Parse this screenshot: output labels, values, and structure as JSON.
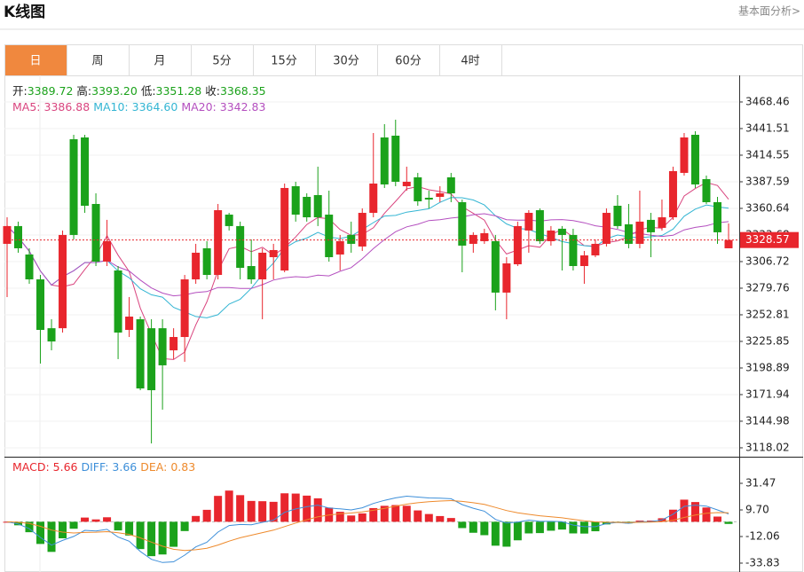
{
  "header": {
    "title": "K线图",
    "link": "基本面分析>"
  },
  "tabs": [
    "日",
    "周",
    "月",
    "5分",
    "15分",
    "30分",
    "60分",
    "4时"
  ],
  "active_tab": 0,
  "chart_data": {
    "type": "candlestick",
    "up_color": "#e8262d",
    "down_color": "#1ba21b",
    "quote": [
      {
        "name": "开:",
        "value": 3389.72
      },
      {
        "name": "高:",
        "value": 3393.2,
        "value_label": "3393.20"
      },
      {
        "name": "低:",
        "value": 3351.28
      },
      {
        "name": "收:",
        "value": 3368.35
      }
    ],
    "quote_color": "#1ba21b",
    "moving_averages": [
      {
        "name": "MA5:",
        "value": 3386.88,
        "period": 5,
        "color": "#d9457f"
      },
      {
        "name": "MA10:",
        "value": 3364.6,
        "value_label": "3364.60",
        "period": 10,
        "color": "#33b5d3"
      },
      {
        "name": "MA20:",
        "value": 3342.83,
        "period": 20,
        "color": "#b44fbf"
      }
    ],
    "open": [
      3324.7,
      3342.7,
      3313.9,
      3288.7,
      3239.2,
      3239.2,
      3430.7,
      3432.5,
      3365.1,
      3306.7,
      3297.7,
      3237.5,
      3248.3,
      3239.2,
      3239.2,
      3216.8,
      3230.3,
      3288.7,
      3320.2,
      3293.2,
      3354.3,
      3342.7,
      3302.2,
      3288.7,
      3311.2,
      3297.7,
      3383.1,
      3372.3,
      3374.1,
      3354.3,
      3313.9,
      3333.7,
      3322.0,
      3356.1,
      3432.5,
      3434.3,
      3383.1,
      3392.1,
      3371.4,
      3372.3,
      3392.1,
      3366.9,
      3324.7,
      3327.4,
      3327.4,
      3275.3,
      3304.0,
      3338.2,
      3358.8,
      3327.4,
      3340.0,
      3333.7,
      3302.2,
      3313.0,
      3324.7,
      3363.3,
      3344.5,
      3324.7,
      3349.0,
      3340.9,
      3351.6,
      3396.6,
      3435.2,
      3390.3,
      3366.9,
      3320.2
    ],
    "high": [
      3351.6,
      3347.2,
      3320.2,
      3293.2,
      3248.3,
      3338.2,
      3435.2,
      3435.2,
      3375.9,
      3349.0,
      3302.2,
      3270.8,
      3251.0,
      3248.3,
      3248.3,
      3239.2,
      3293.2,
      3324.7,
      3327.4,
      3365.1,
      3356.1,
      3347.2,
      3329.2,
      3320.2,
      3324.7,
      3385.8,
      3387.6,
      3375.9,
      3402.9,
      3378.6,
      3333.7,
      3347.2,
      3360.6,
      3437.0,
      3446.0,
      3450.5,
      3402.9,
      3396.6,
      3378.6,
      3383.1,
      3396.6,
      3369.6,
      3336.4,
      3340.0,
      3333.7,
      3311.2,
      3347.2,
      3358.8,
      3360.6,
      3342.7,
      3342.7,
      3340.0,
      3317.5,
      3329.2,
      3360.6,
      3374.1,
      3365.1,
      3378.6,
      3356.1,
      3369.6,
      3402.9,
      3437.0,
      3438.8,
      3393.9,
      3372.3,
      3345.4
    ],
    "low": [
      3270.8,
      3315.7,
      3284.2,
      3203.4,
      3216.8,
      3234.8,
      3329.2,
      3356.1,
      3302.2,
      3302.2,
      3207.9,
      3230.3,
      3176.4,
      3122.5,
      3156.7,
      3207.9,
      3205.2,
      3284.2,
      3288.7,
      3288.7,
      3338.2,
      3288.7,
      3284.2,
      3248.3,
      3288.7,
      3295.9,
      3347.2,
      3347.2,
      3342.7,
      3306.7,
      3297.7,
      3315.7,
      3317.5,
      3351.6,
      3381.3,
      3383.1,
      3378.6,
      3363.3,
      3360.6,
      3366.9,
      3366.9,
      3295.9,
      3315.7,
      3324.7,
      3257.3,
      3248.3,
      3302.2,
      3315.7,
      3324.7,
      3322.9,
      3297.7,
      3297.7,
      3284.2,
      3311.2,
      3322.0,
      3340.0,
      3320.2,
      3320.2,
      3311.2,
      3338.2,
      3349.0,
      3393.9,
      3381.3,
      3365.1,
      3324.7,
      3320.2
    ],
    "close": [
      3342.7,
      3320.2,
      3288.7,
      3237.5,
      3225.8,
      3333.7,
      3333.7,
      3363.3,
      3306.7,
      3327.4,
      3234.8,
      3251.0,
      3178.2,
      3176.4,
      3201.6,
      3230.3,
      3288.7,
      3315.7,
      3293.2,
      3358.8,
      3342.7,
      3300.4,
      3288.7,
      3315.7,
      3318.4,
      3381.3,
      3354.3,
      3351.6,
      3351.6,
      3311.2,
      3327.4,
      3324.7,
      3356.1,
      3385.8,
      3384.9,
      3387.6,
      3387.6,
      3367.8,
      3369.6,
      3375.9,
      3375.9,
      3322.9,
      3333.7,
      3335.5,
      3275.3,
      3304.9,
      3342.7,
      3356.1,
      3327.4,
      3338.2,
      3333.7,
      3302.2,
      3313.0,
      3324.7,
      3356.1,
      3342.7,
      3324.7,
      3347.2,
      3336.4,
      3351.6,
      3398.4,
      3432.5,
      3384.9,
      3366.9,
      3336.4,
      3328.57
    ],
    "last_price": 3328.57,
    "ylim": [
      3109.0,
      3495.4
    ],
    "yticks": [
      3468.46,
      3441.51,
      3414.55,
      3387.59,
      3360.64,
      3333.68,
      3306.72,
      3279.76,
      3252.81,
      3225.85,
      3198.89,
      3171.94,
      3144.98,
      3118.02
    ],
    "macd": {
      "legend": [
        {
          "name": "MACD:",
          "value": 5.66,
          "color": "#e8262d"
        },
        {
          "name": "DIFF:",
          "value": 3.66,
          "color": "#3d8fd9"
        },
        {
          "name": "DEA:",
          "value": 0.83,
          "color": "#ee8a2c"
        }
      ],
      "ylim": [
        -41.1,
        51.8
      ],
      "yticks": [
        31.47,
        {
          "value": 9.7,
          "label": "9.70"
        },
        -12.06,
        -33.83
      ]
    }
  }
}
